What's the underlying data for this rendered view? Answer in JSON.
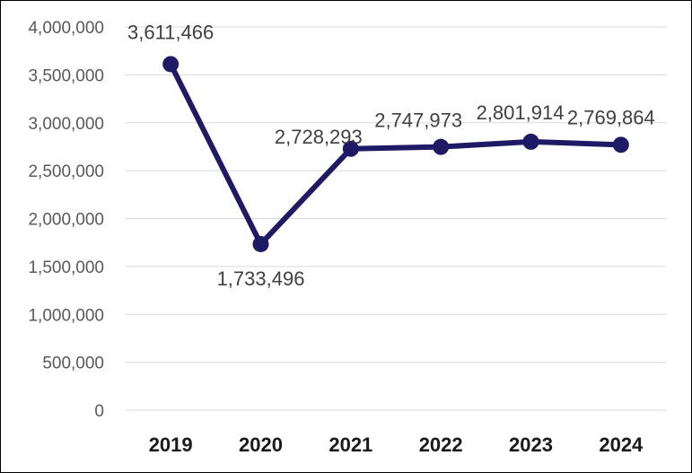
{
  "chart_data": {
    "type": "line",
    "title": "",
    "xlabel": "",
    "ylabel": "",
    "categories": [
      "2019",
      "2020",
      "2021",
      "2022",
      "2023",
      "2024"
    ],
    "series": [
      {
        "values": [
          3611466,
          1733496,
          2728293,
          2747973,
          2801914,
          2769864
        ],
        "data_labels": [
          "3,611,466",
          "1,733,496",
          "2,728,293",
          "2,747,973",
          "2,801,914",
          "2,769,864"
        ],
        "color": "#1f1a66"
      }
    ],
    "ylim": [
      0,
      4000000
    ],
    "y_ticks": [
      0,
      500000,
      1000000,
      1500000,
      2000000,
      2500000,
      3000000,
      3500000,
      4000000
    ],
    "y_tick_labels": [
      "0",
      "500,000",
      "1,000,000",
      "1,500,000",
      "2,000,000",
      "2,500,000",
      "3,000,000",
      "3,500,000",
      "4,000,000"
    ],
    "grid": true,
    "legend": "none",
    "colors": {
      "line": "#1f1a66",
      "grid": "#d9d9d9"
    }
  }
}
